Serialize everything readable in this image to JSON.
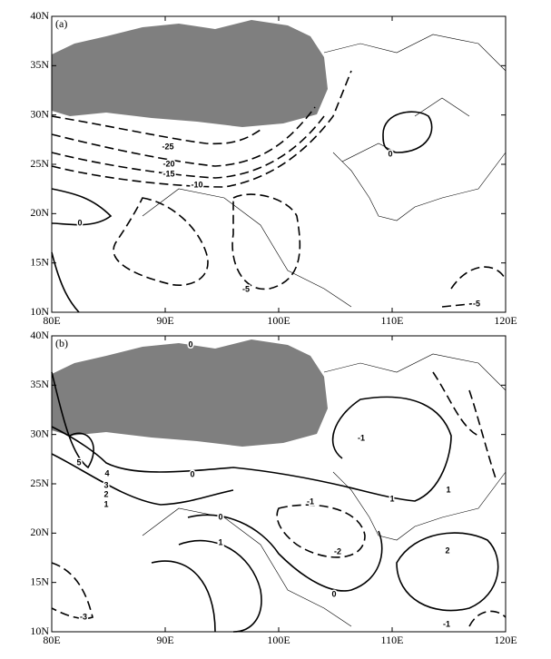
{
  "panels": [
    {
      "label": "(a)",
      "lat_labels": [
        "40N",
        "35N",
        "30N",
        "25N",
        "20N",
        "15N",
        "10N"
      ],
      "lon_labels": [
        "80E",
        "90E",
        "100E",
        "110E",
        "120E"
      ],
      "contour_labels": [
        "-25",
        "-20",
        "-15",
        "-10",
        "0",
        "0",
        "-5",
        "-5"
      ]
    },
    {
      "label": "(b)",
      "lat_labels": [
        "40N",
        "35N",
        "30N",
        "25N",
        "20N",
        "15N",
        "10N"
      ],
      "lon_labels": [
        "80E",
        "90E",
        "100E",
        "110E",
        "120E"
      ],
      "contour_labels": [
        "0",
        "5",
        "4",
        "3",
        "2",
        "1",
        "0",
        "0",
        "1",
        "-1",
        "1",
        "-1",
        "-2",
        "1",
        "0",
        "2",
        "-3",
        "-1"
      ]
    }
  ]
}
